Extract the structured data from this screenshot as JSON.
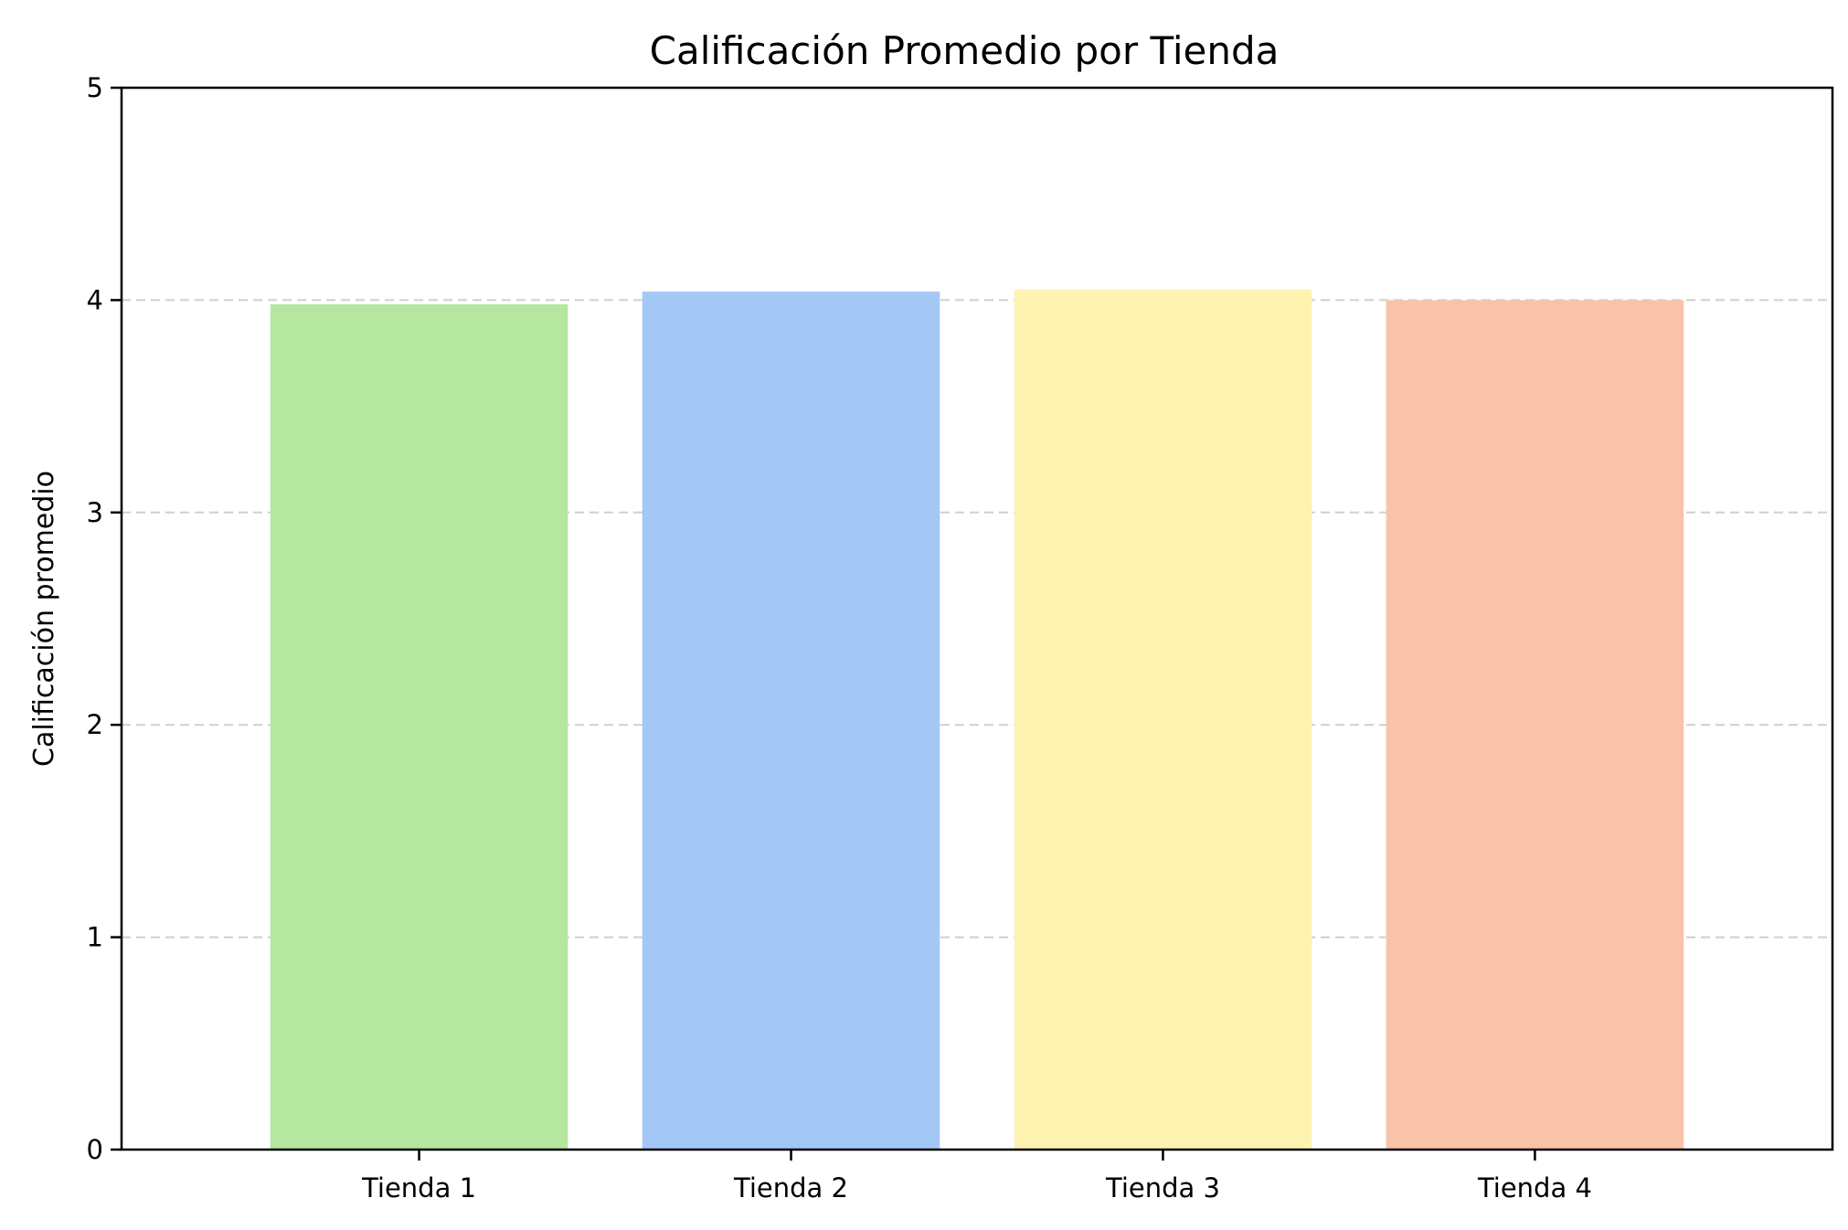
{
  "chart_data": {
    "type": "bar",
    "title": "Calificación Promedio por Tienda",
    "xlabel": "",
    "ylabel": "Calificación promedio",
    "categories": [
      "Tienda 1",
      "Tienda 2",
      "Tienda 3",
      "Tienda 4"
    ],
    "values": [
      3.98,
      4.04,
      4.05,
      4.0
    ],
    "colors": [
      "#b5e7a0",
      "#a3c8f6",
      "#fff3b2",
      "#f9c3a9"
    ],
    "ylim": [
      0,
      5
    ],
    "yticks": [
      0,
      1,
      2,
      3,
      4,
      5
    ],
    "grid": "y-dashed",
    "legend": "none"
  }
}
